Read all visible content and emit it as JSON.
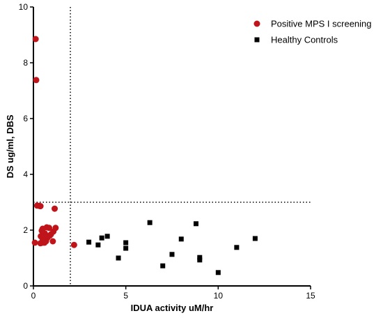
{
  "chart_data": {
    "type": "scatter",
    "title": "",
    "xlabel": "IDUA activity uM/hr",
    "ylabel": "DS ug/ml, DBS",
    "xlim": [
      0,
      15
    ],
    "ylim": [
      0,
      10
    ],
    "x_ticks": [
      0,
      5,
      10,
      15
    ],
    "y_ticks": [
      0,
      2,
      4,
      6,
      8,
      10
    ],
    "grid": false,
    "legend_position": "top-right",
    "reference_lines": [
      {
        "orientation": "vertical",
        "value": 2,
        "style": "dotted"
      },
      {
        "orientation": "horizontal",
        "value": 3,
        "style": "dotted"
      }
    ],
    "series": [
      {
        "name": "Positive MPS I screening",
        "marker": "circle",
        "color": "#c0141b",
        "points": [
          [
            0.12,
            8.85
          ],
          [
            0.15,
            7.38
          ],
          [
            0.2,
            2.88
          ],
          [
            0.32,
            2.87
          ],
          [
            0.38,
            2.86
          ],
          [
            1.15,
            2.77
          ],
          [
            0.5,
            2.05
          ],
          [
            0.72,
            2.1
          ],
          [
            0.85,
            2.08
          ],
          [
            1.2,
            2.08
          ],
          [
            0.45,
            1.98
          ],
          [
            0.62,
            1.88
          ],
          [
            0.95,
            1.85
          ],
          [
            1.08,
            1.95
          ],
          [
            0.4,
            1.78
          ],
          [
            0.58,
            1.72
          ],
          [
            0.75,
            1.72
          ],
          [
            0.88,
            1.8
          ],
          [
            0.5,
            1.62
          ],
          [
            0.68,
            1.6
          ],
          [
            1.05,
            1.6
          ],
          [
            0.08,
            1.55
          ],
          [
            0.38,
            1.53
          ],
          [
            0.5,
            1.55
          ],
          [
            0.6,
            1.55
          ],
          [
            2.2,
            1.47
          ]
        ]
      },
      {
        "name": "Healthy Controls",
        "marker": "square",
        "color": "#000000",
        "points": [
          [
            3.0,
            1.57
          ],
          [
            3.5,
            1.47
          ],
          [
            3.7,
            1.72
          ],
          [
            4.0,
            1.78
          ],
          [
            4.6,
            1.0
          ],
          [
            5.0,
            1.55
          ],
          [
            5.0,
            1.35
          ],
          [
            6.3,
            2.27
          ],
          [
            7.0,
            0.72
          ],
          [
            7.5,
            1.13
          ],
          [
            8.0,
            1.68
          ],
          [
            8.8,
            2.23
          ],
          [
            9.0,
            1.02
          ],
          [
            9.0,
            0.93
          ],
          [
            10.0,
            0.48
          ],
          [
            11.0,
            1.38
          ],
          [
            12.0,
            1.7
          ]
        ]
      }
    ]
  }
}
